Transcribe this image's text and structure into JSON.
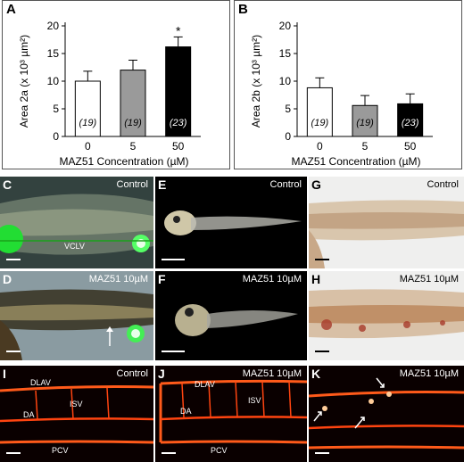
{
  "chart_data": [
    {
      "panel": "A",
      "type": "bar",
      "categories": [
        "0",
        "5",
        "50"
      ],
      "values": [
        10,
        12,
        16.2
      ],
      "errors": [
        1.8,
        1.8,
        1.8
      ],
      "sample_sizes": [
        "(19)",
        "(19)",
        "(23)"
      ],
      "bar_colors": [
        "#ffffff",
        "#9a9a9a",
        "#000000"
      ],
      "significance": [
        "",
        "",
        "*"
      ],
      "xlabel": "MAZ51 Concentration (µM)",
      "ylabel": "Area 2a (x 10³ µm²)",
      "ylim": [
        0,
        20
      ],
      "yticks": [
        "0",
        "5",
        "10",
        "15",
        "20"
      ]
    },
    {
      "panel": "B",
      "type": "bar",
      "categories": [
        "0",
        "5",
        "50"
      ],
      "values": [
        8.8,
        5.6,
        5.9
      ],
      "errors": [
        1.8,
        1.8,
        1.8
      ],
      "sample_sizes": [
        "(19)",
        "(19)",
        "(23)"
      ],
      "bar_colors": [
        "#ffffff",
        "#9a9a9a",
        "#000000"
      ],
      "significance": [
        "",
        "",
        ""
      ],
      "xlabel": "MAZ51 Concentration (µM)",
      "ylabel": "Area 2b (x 10³ µm²)",
      "ylim": [
        0,
        20
      ],
      "yticks": [
        "0",
        "5",
        "10",
        "15",
        "20"
      ]
    }
  ],
  "photo_panels": {
    "C": {
      "label": "C",
      "title": "Control",
      "annotations": [
        "VCLV"
      ]
    },
    "D": {
      "label": "D",
      "title": "MAZ51 10µM"
    },
    "E": {
      "label": "E",
      "title": "Control"
    },
    "F": {
      "label": "F",
      "title": "MAZ51 10µM"
    },
    "G": {
      "label": "G",
      "title": "Control"
    },
    "H": {
      "label": "H",
      "title": "MAZ51 10µM"
    },
    "I": {
      "label": "I",
      "title": "Control",
      "annotations": [
        "DLAV",
        "DA",
        "ISV",
        "PCV"
      ]
    },
    "J": {
      "label": "J",
      "title": "MAZ51 10µM",
      "annotations": [
        "DLAV",
        "DA",
        "ISV",
        "PCV"
      ]
    },
    "K": {
      "label": "K",
      "title": "MAZ51 10µM"
    }
  }
}
